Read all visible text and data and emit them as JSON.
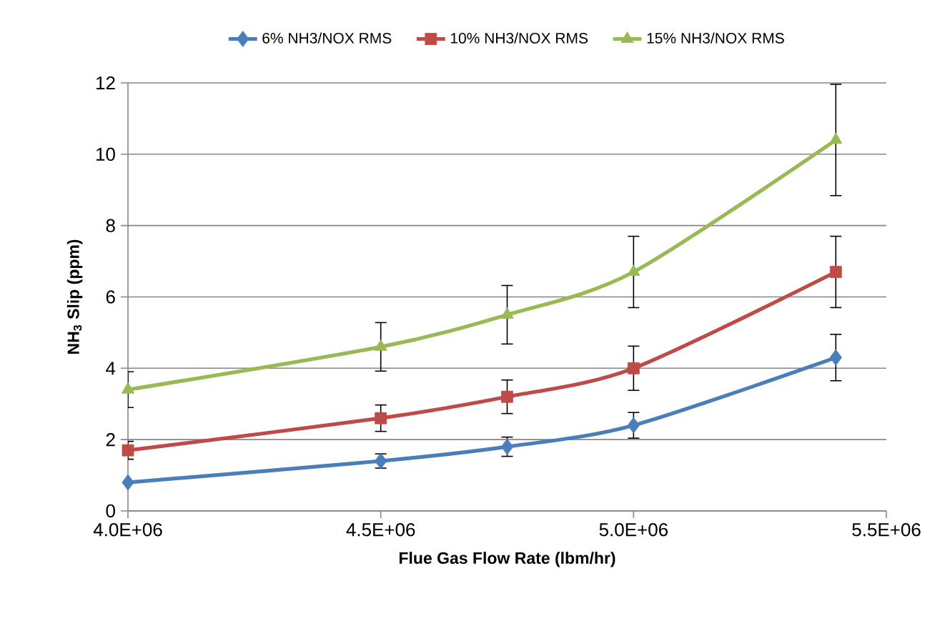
{
  "chart_data": {
    "type": "line",
    "xlabel": "Flue Gas Flow Rate (lbm/hr)",
    "ylabel": "NH$_{3}$ Slip (ppm)",
    "x": [
      4000000,
      4500000,
      4750000,
      5000000,
      5400000
    ],
    "series": [
      {
        "name": "6% NH3/NOX RMS",
        "color": "#4a7ebb",
        "marker": "diamond",
        "values": [
          0.8,
          1.4,
          1.8,
          2.4,
          4.3
        ],
        "errors": [
          null,
          0.2,
          0.27,
          0.36,
          0.65
        ]
      },
      {
        "name": "10% NH3/NOX RMS",
        "color": "#be4b48",
        "marker": "square",
        "values": [
          1.7,
          2.6,
          3.2,
          4.0,
          6.7
        ],
        "errors": [
          0.25,
          0.37,
          0.47,
          0.62,
          1.0
        ]
      },
      {
        "name": "15% NH3/NOX RMS",
        "color": "#98b954",
        "marker": "triangle",
        "values": [
          3.4,
          4.6,
          5.5,
          6.7,
          10.4
        ],
        "errors": [
          0.5,
          0.68,
          0.82,
          1.0,
          1.56
        ]
      }
    ],
    "xlim": [
      4000000,
      5500000
    ],
    "xticks": [
      {
        "value": 4000000,
        "label": "4.0E+06"
      },
      {
        "value": 4500000,
        "label": "4.5E+06"
      },
      {
        "value": 5000000,
        "label": "5.0E+06"
      },
      {
        "value": 5500000,
        "label": "5.5E+06"
      }
    ],
    "ylim": [
      0,
      12
    ],
    "yticks": [
      0,
      2,
      4,
      6,
      8,
      10,
      12
    ],
    "grid": "y",
    "legend": "top",
    "line_style": "solid"
  }
}
